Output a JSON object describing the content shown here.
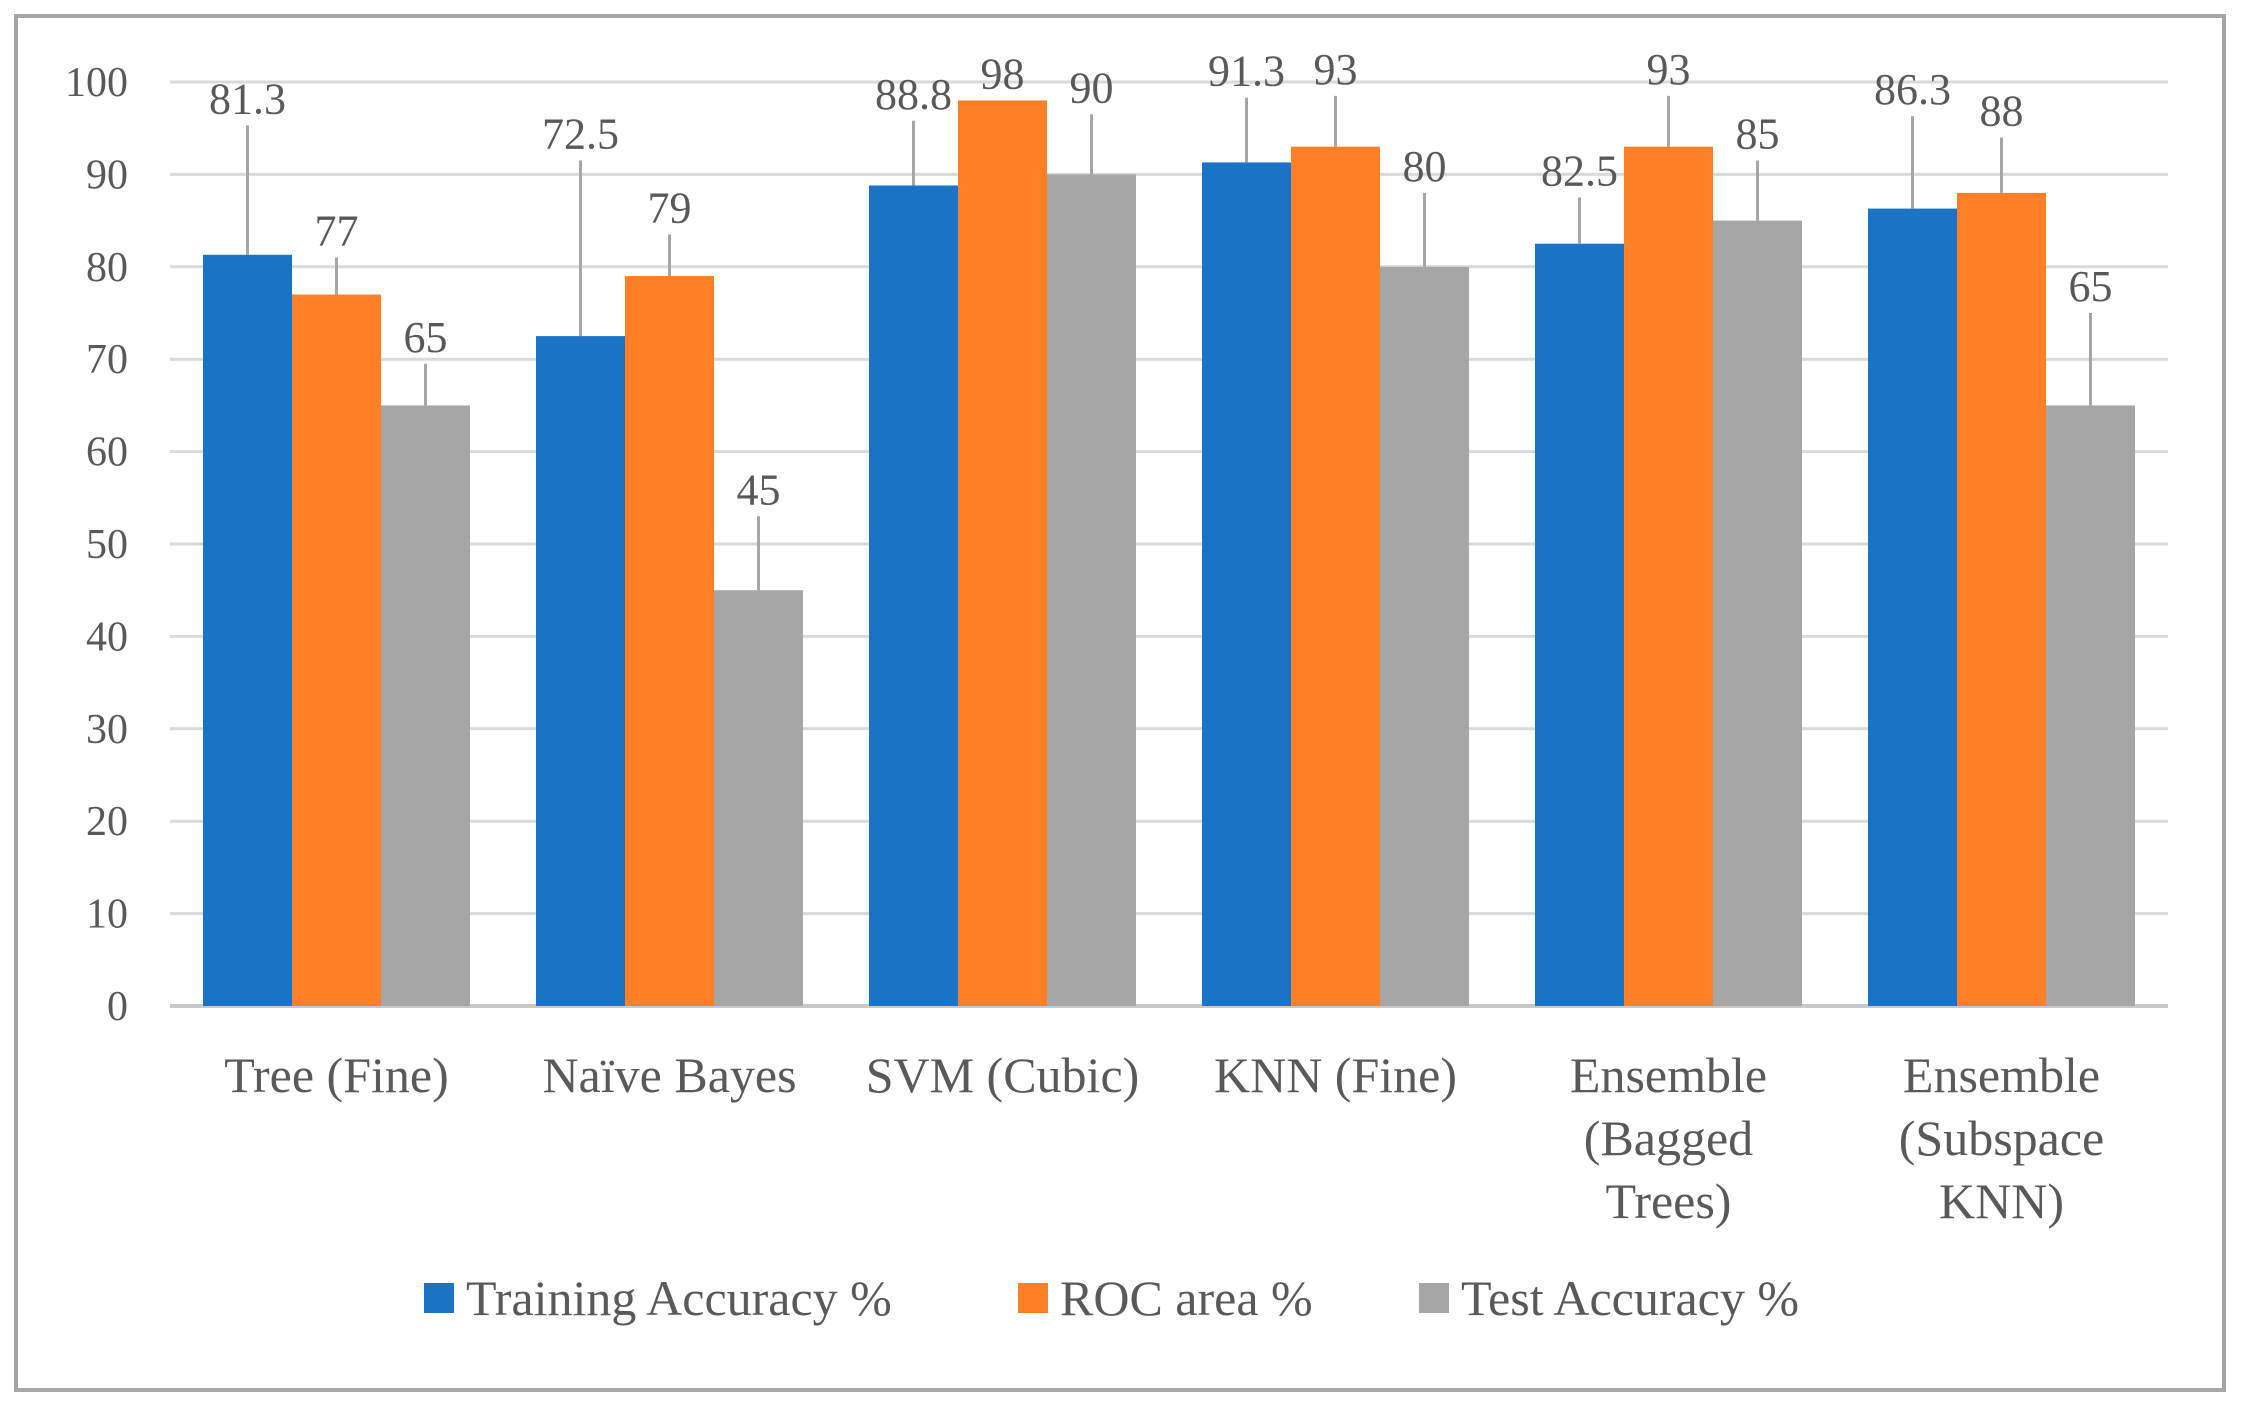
{
  "chart_data": {
    "type": "bar",
    "title": "",
    "xlabel": "",
    "ylabel": "",
    "ylim": [
      0,
      100
    ],
    "yticks": [
      0,
      10,
      20,
      30,
      40,
      50,
      60,
      70,
      80,
      90,
      100
    ],
    "grid": true,
    "legend_position": "bottom",
    "categories": [
      [
        "Tree (Fine)"
      ],
      [
        "Naïve Bayes"
      ],
      [
        "SVM (Cubic)"
      ],
      [
        "KNN (Fine)"
      ],
      [
        "Ensemble",
        "(Bagged",
        "Trees)"
      ],
      [
        "Ensemble",
        "(Subspace",
        "KNN)"
      ]
    ],
    "series": [
      {
        "name": "Training Accuracy %",
        "color": "#1a73c7",
        "values": [
          81.3,
          72.5,
          88.8,
          91.3,
          82.5,
          86.3
        ],
        "error": [
          14,
          19,
          7,
          7,
          5,
          10
        ]
      },
      {
        "name": "ROC area %",
        "color": "#ff7f27",
        "values": [
          77,
          79,
          98,
          93,
          93,
          88
        ],
        "error": [
          4,
          4.5,
          0,
          5.5,
          5.5,
          6
        ]
      },
      {
        "name": "Test Accuracy %",
        "color": "#a6a6a6",
        "values": [
          65,
          45,
          90,
          80,
          85,
          65
        ],
        "error": [
          4.5,
          8,
          6.5,
          8,
          6.5,
          10
        ]
      }
    ]
  }
}
